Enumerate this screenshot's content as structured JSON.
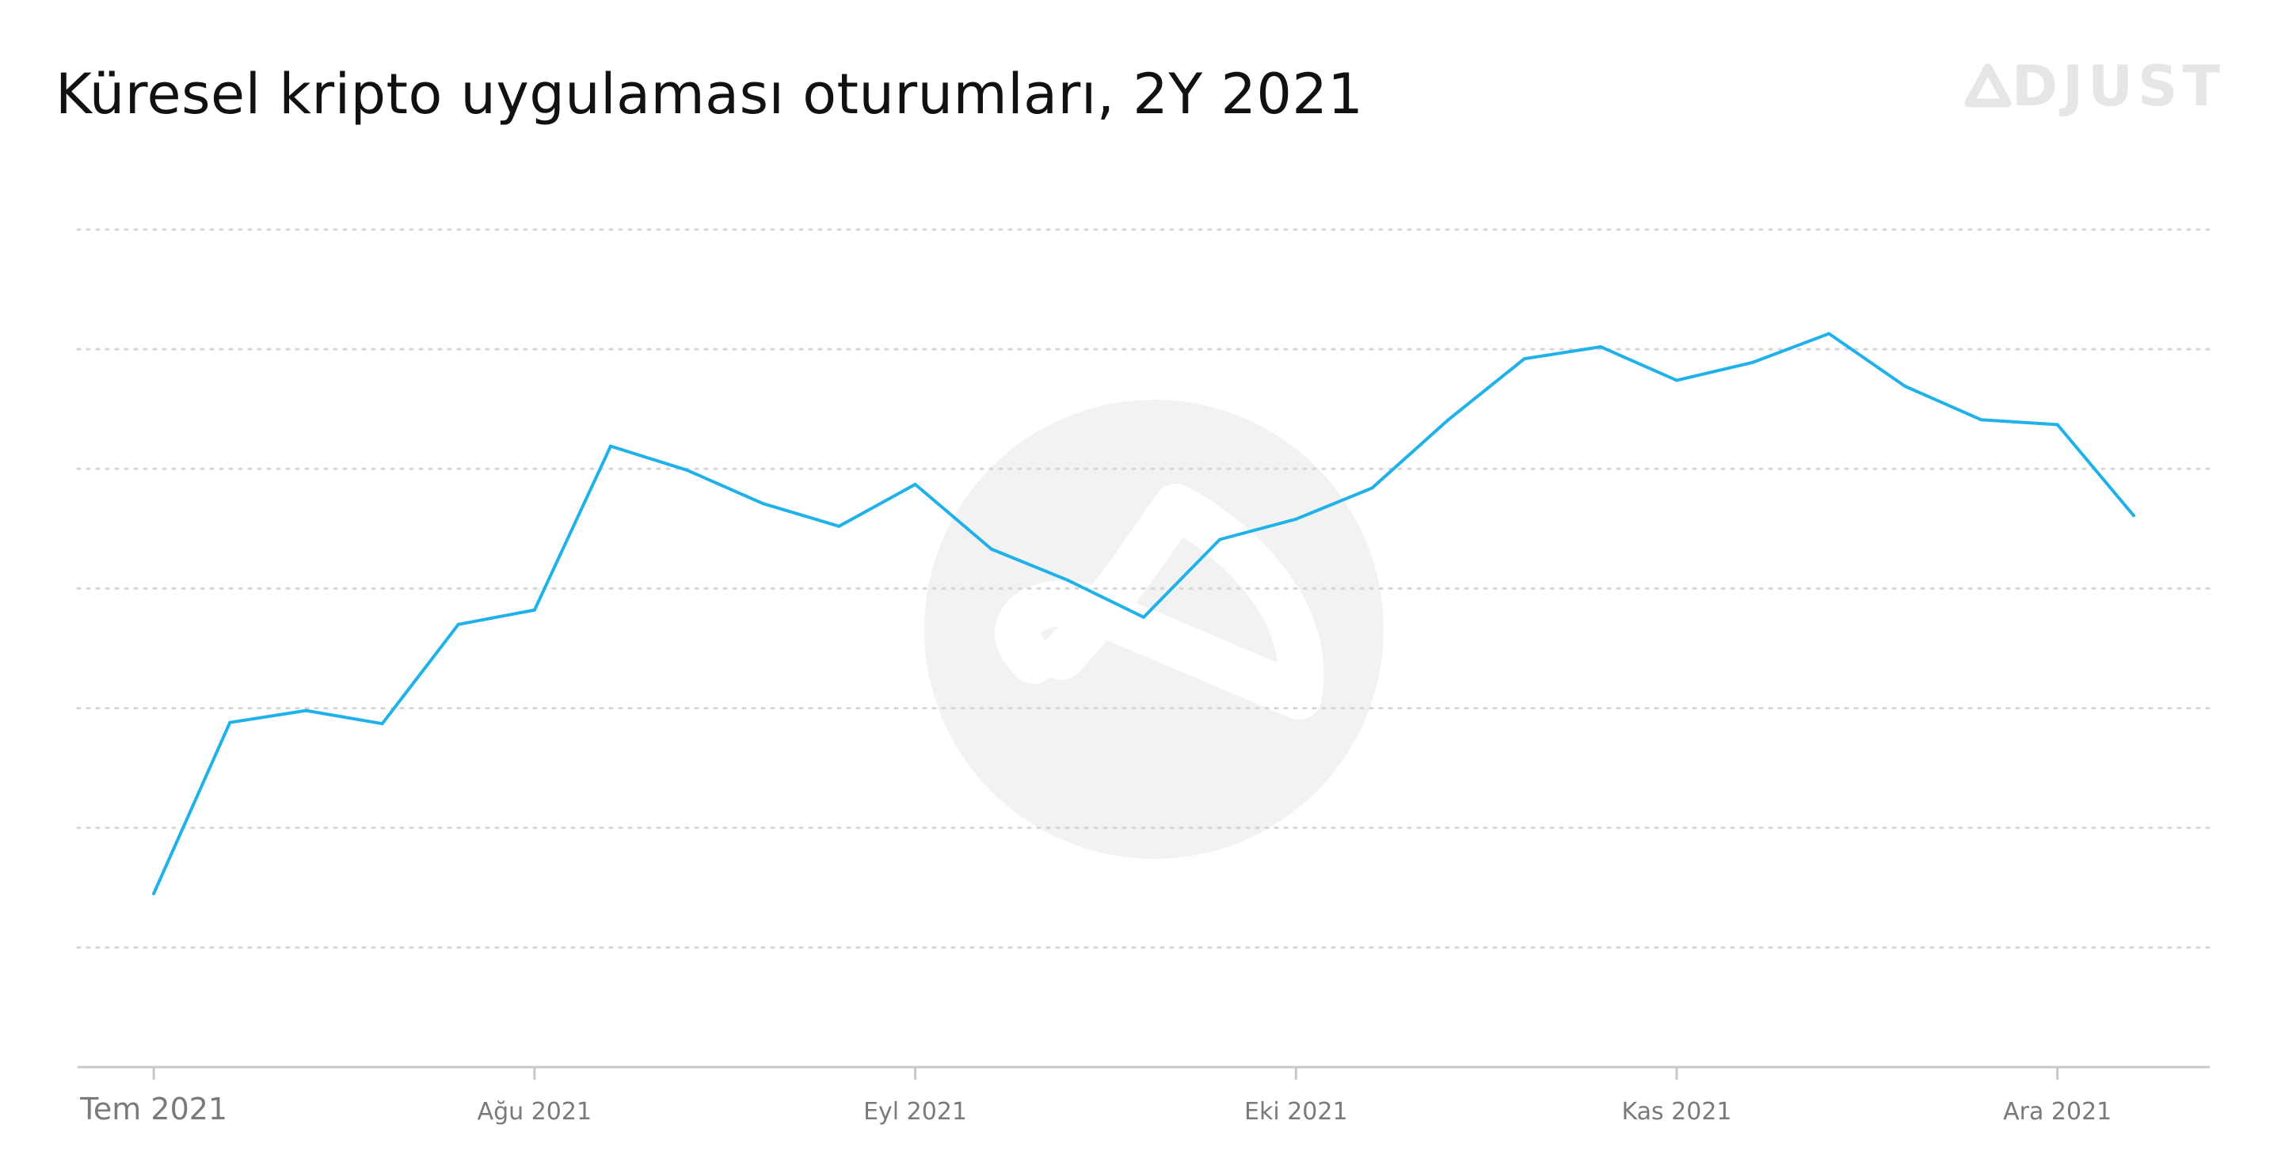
{
  "header": {
    "title": "Küresel kripto uygulaması oturumları, 2Y 2021",
    "brand_text": "DJUST",
    "brand_icon": "adjust-logo-icon"
  },
  "colors": {
    "line": "#1fb1ea",
    "grid": "#d6d6d6",
    "axis": "#c8c8c8",
    "watermark": "#f3f2f3",
    "brand": "#e6e6e6"
  },
  "chart_data": {
    "type": "line",
    "title": "Küresel kripto uygulaması oturumları, 2Y 2021",
    "xlabel": "",
    "ylabel": "",
    "grid": true,
    "y_axis_labels": false,
    "x_ticks": [
      {
        "label": "Tem 2021",
        "week": 0
      },
      {
        "label": "Ağu 2021",
        "week": 5
      },
      {
        "label": "Eyl 2021",
        "week": 10
      },
      {
        "label": "Eki 2021",
        "week": 15
      },
      {
        "label": "Kas 2021",
        "week": 20
      },
      {
        "label": "Ara 2021",
        "week": 25
      }
    ],
    "x_range_weeks": [
      -1,
      27
    ],
    "ylim": [
      0,
      7
    ],
    "series": [
      {
        "values": [
          1.45,
          2.88,
          2.98,
          2.87,
          3.7,
          3.82,
          5.19,
          4.99,
          4.71,
          4.52,
          4.87,
          4.33,
          4.07,
          3.76,
          4.41,
          4.58,
          4.84,
          5.41,
          5.92,
          6.02,
          5.74,
          5.89,
          6.13,
          5.69,
          5.41,
          5.37,
          4.61
        ]
      }
    ]
  }
}
